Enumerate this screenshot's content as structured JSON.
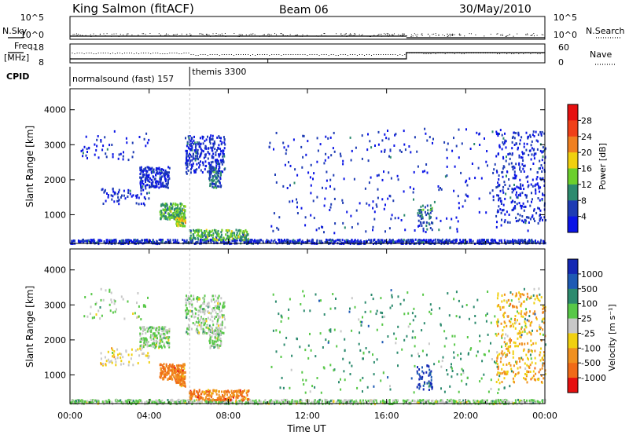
{
  "header": {
    "station": "King Salmon (fitACF)",
    "beam": "Beam 06",
    "date": "30/May/2010"
  },
  "sky_panel": {
    "left_label": "N.Sky",
    "right_label": "N.Search",
    "tick_labels": [
      "10^5",
      "10^0"
    ]
  },
  "freq_panel": {
    "left_label_line1": "Freq.",
    "left_label_line2": "[MHz]",
    "left_ticks": [
      "18",
      "8"
    ],
    "right_label": "Nave",
    "right_ticks": [
      "60",
      "0"
    ]
  },
  "cpid_panel": {
    "label": "CPID",
    "entries": [
      {
        "name": "normalsound (fast)",
        "id": "157",
        "start_hour": 0
      },
      {
        "name": "themis",
        "id": "3300",
        "start_hour": 6.05
      }
    ]
  },
  "chart_data": [
    {
      "type": "heatmap",
      "panel": "power",
      "ylabel": "Slant Range [km]",
      "xlabel": "",
      "ylim": [
        180,
        4600
      ],
      "yticks": [
        "1000",
        "2000",
        "3000",
        "4000"
      ],
      "colorbar_label": "Power [dB]",
      "colorbar_ticks": [
        "4",
        "8",
        "12",
        "16",
        "20",
        "24",
        "28"
      ],
      "colorbar_colors": [
        "#0a14e6",
        "#1e3cb4",
        "#2c8a6e",
        "#6ccf2c",
        "#f0d010",
        "#f08020",
        "#f04018",
        "#e61010"
      ]
    },
    {
      "type": "heatmap",
      "panel": "velocity",
      "ylabel": "Slant Range [km]",
      "xlabel": "Time UT",
      "ylim": [
        180,
        4600
      ],
      "yticks": [
        "1000",
        "2000",
        "3000",
        "4000"
      ],
      "xticks": [
        "00:00",
        "04:00",
        "08:00",
        "12:00",
        "16:00",
        "20:00",
        "00:00"
      ],
      "colorbar_label": "Velocity [m s⁻¹]",
      "colorbar_ticks": [
        "1000",
        "500",
        "100",
        "25",
        "-25",
        "-100",
        "-500",
        "-1000"
      ],
      "colorbar_colors": [
        "#1428b4",
        "#1e5ab4",
        "#2c8a6e",
        "#58c848",
        "#c8c8c8",
        "#f0d010",
        "#f09020",
        "#f06a18",
        "#e61010"
      ]
    }
  ]
}
